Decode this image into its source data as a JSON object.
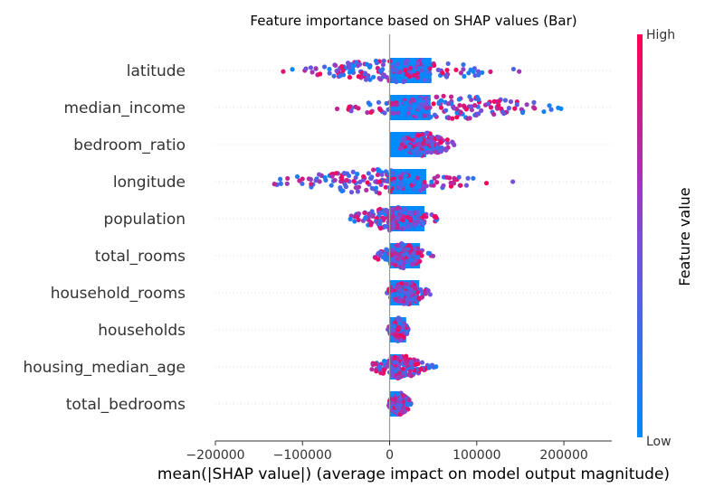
{
  "chart_data": {
    "type": "beeswarm",
    "title": "Feature importance based on SHAP values (Bar)",
    "xlabel": "mean(|SHAP value|) (average impact on model output magnitude)",
    "ylabel": "",
    "xlim": [
      -200000,
      255000
    ],
    "xticks": [
      -200000,
      -100000,
      0,
      100000,
      200000
    ],
    "xtick_labels": [
      "−200000",
      "−100000",
      "0",
      "100000",
      "200000"
    ],
    "grid": false,
    "colorbar": {
      "title": "Feature value",
      "high_label": "High",
      "low_label": "Low",
      "low_color": "#008bfb",
      "mid_color": "#7d4cd9",
      "high_color": "#ff0052"
    },
    "features": [
      {
        "name": "latitude",
        "mean_abs": 48000,
        "min": -148000,
        "max": 175000
      },
      {
        "name": "median_income",
        "mean_abs": 47000,
        "min": -92000,
        "max": 235000
      },
      {
        "name": "bedroom_ratio",
        "mean_abs": 42000,
        "min": -5000,
        "max": 85000
      },
      {
        "name": "longitude",
        "mean_abs": 42000,
        "min": -182000,
        "max": 150000
      },
      {
        "name": "population",
        "mean_abs": 40000,
        "min": -62000,
        "max": 72000
      },
      {
        "name": "total_rooms",
        "mean_abs": 35000,
        "min": -25000,
        "max": 55000
      },
      {
        "name": "household_rooms",
        "mean_abs": 34000,
        "min": -12000,
        "max": 52000
      },
      {
        "name": "households",
        "mean_abs": 19000,
        "min": -5000,
        "max": 27000
      },
      {
        "name": "housing_median_age",
        "mean_abs": 13000,
        "min": -32000,
        "max": 58000
      },
      {
        "name": "total_bedrooms",
        "mean_abs": 12000,
        "min": -5000,
        "max": 28000
      }
    ]
  },
  "colors": {
    "bar": "#008bfb",
    "zero_line": "#999999",
    "axis": "#333333"
  }
}
